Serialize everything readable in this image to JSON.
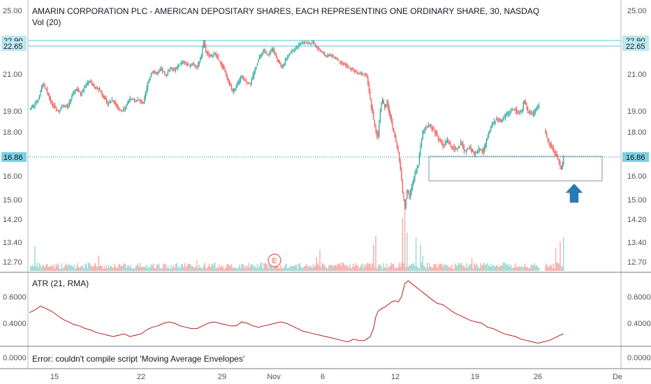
{
  "chart_data": {
    "type": "candlestick",
    "title": "AMARIN CORPORATION PLC - AMERICAN DEPOSITARY SHARES, EACH REPRESENTING ONE ORDINARY SHARE, 30, NASDAQ",
    "volume_label": "Vol (20)",
    "atr_label": "ATR (21, RMA)",
    "error_label": "Error: couldn't compile script 'Moving Average Envelopes'",
    "price_ticks": [
      "25.00",
      "21.00",
      "19.00",
      "18.00",
      "16.00",
      "15.00",
      "14.20",
      "13.40",
      "12.70"
    ],
    "atr_ticks": [
      "0.6000",
      "0.4000"
    ],
    "bottom_tick": "0.0000",
    "x_ticks": [
      "15",
      "22",
      "29",
      "Nov",
      "6",
      "12",
      "19",
      "26",
      "De"
    ],
    "levels": [
      {
        "value": "22.90",
        "color": "#7ccfe0"
      },
      {
        "value": "22.65",
        "color": "#7ccfe0"
      },
      {
        "value": "16.86",
        "color": "#26a69a",
        "dotted": true
      }
    ],
    "earnings_marker": "E",
    "colors": {
      "up": "#26a69a",
      "down": "#ef5350",
      "vol_up": "#9ad7cf",
      "vol_down": "#f7a9a7",
      "atr": "#b71c1c",
      "arrow": "#2979b9"
    },
    "price_path": [
      [
        0,
        19.1
      ],
      [
        4,
        19.3
      ],
      [
        8,
        19.6
      ],
      [
        12,
        20.5
      ],
      [
        16,
        20.0
      ],
      [
        20,
        19.4
      ],
      [
        26,
        19.0
      ],
      [
        30,
        19.3
      ],
      [
        34,
        19.2
      ],
      [
        38,
        19.8
      ],
      [
        42,
        20.2
      ],
      [
        46,
        19.9
      ],
      [
        50,
        20.4
      ],
      [
        54,
        20.6
      ],
      [
        58,
        20.3
      ],
      [
        62,
        20.2
      ],
      [
        66,
        19.8
      ],
      [
        70,
        19.4
      ],
      [
        74,
        19.6
      ],
      [
        78,
        19.3
      ],
      [
        82,
        19.0
      ],
      [
        86,
        19.2
      ],
      [
        90,
        19.7
      ],
      [
        94,
        19.5
      ],
      [
        98,
        19.6
      ],
      [
        102,
        19.4
      ],
      [
        106,
        20.5
      ],
      [
        110,
        21.2
      ],
      [
        114,
        21.0
      ],
      [
        118,
        21.3
      ],
      [
        122,
        20.9
      ],
      [
        126,
        21.4
      ],
      [
        130,
        21.2
      ],
      [
        134,
        21.6
      ],
      [
        138,
        21.8
      ],
      [
        142,
        21.5
      ],
      [
        146,
        21.7
      ],
      [
        150,
        21.4
      ],
      [
        154,
        22.2
      ],
      [
        156,
        23.1
      ],
      [
        158,
        22.4
      ],
      [
        162,
        22.1
      ],
      [
        166,
        22.3
      ],
      [
        170,
        21.8
      ],
      [
        174,
        21.3
      ],
      [
        178,
        20.6
      ],
      [
        182,
        20.1
      ],
      [
        186,
        20.4
      ],
      [
        190,
        20.9
      ],
      [
        194,
        20.6
      ],
      [
        198,
        20.5
      ],
      [
        202,
        21.3
      ],
      [
        206,
        22.1
      ],
      [
        210,
        22.5
      ],
      [
        214,
        22.2
      ],
      [
        218,
        22.6
      ],
      [
        222,
        21.9
      ],
      [
        226,
        21.4
      ],
      [
        230,
        22.0
      ],
      [
        234,
        22.4
      ],
      [
        238,
        22.6
      ],
      [
        242,
        22.9
      ],
      [
        246,
        23.0
      ],
      [
        250,
        22.9
      ],
      [
        254,
        23.0
      ],
      [
        258,
        22.6
      ],
      [
        262,
        22.4
      ],
      [
        266,
        22.1
      ],
      [
        270,
        22.2
      ],
      [
        274,
        22.0
      ],
      [
        278,
        21.8
      ],
      [
        282,
        21.6
      ],
      [
        286,
        21.4
      ],
      [
        290,
        21.2
      ],
      [
        294,
        21.0
      ],
      [
        298,
        21.0
      ],
      [
        302,
        20.9
      ],
      [
        306,
        19.2
      ],
      [
        310,
        18.0
      ],
      [
        312,
        17.8
      ],
      [
        314,
        19.1
      ],
      [
        316,
        19.6
      ],
      [
        318,
        19.2
      ],
      [
        320,
        19.5
      ],
      [
        322,
        18.9
      ],
      [
        326,
        18.0
      ],
      [
        330,
        17.1
      ],
      [
        332,
        16.3
      ],
      [
        334,
        15.3
      ],
      [
        336,
        14.7
      ],
      [
        338,
        15.4
      ],
      [
        340,
        15.1
      ],
      [
        342,
        15.5
      ],
      [
        344,
        15.9
      ],
      [
        346,
        16.3
      ],
      [
        348,
        16.5
      ],
      [
        350,
        17.4
      ],
      [
        352,
        18.0
      ],
      [
        354,
        18.2
      ],
      [
        358,
        18.3
      ],
      [
        362,
        18.1
      ],
      [
        366,
        17.7
      ],
      [
        370,
        17.4
      ],
      [
        374,
        17.6
      ],
      [
        378,
        17.3
      ],
      [
        382,
        17.2
      ],
      [
        386,
        17.5
      ],
      [
        390,
        17.1
      ],
      [
        394,
        17.3
      ],
      [
        398,
        17.0
      ],
      [
        402,
        17.2
      ],
      [
        406,
        17.1
      ],
      [
        410,
        17.8
      ],
      [
        414,
        18.4
      ],
      [
        418,
        18.6
      ],
      [
        422,
        18.5
      ],
      [
        426,
        18.8
      ],
      [
        430,
        19.0
      ],
      [
        434,
        19.1
      ],
      [
        438,
        18.9
      ],
      [
        441,
        19.0
      ],
      [
        442,
        19.5
      ],
      [
        444,
        19.4
      ],
      [
        446,
        19.0
      ],
      [
        450,
        18.8
      ],
      [
        454,
        19.2
      ],
      [
        456,
        19.3
      ],
      [
        462,
        17.9
      ],
      [
        464,
        17.6
      ],
      [
        466,
        17.4
      ],
      [
        468,
        17.2
      ],
      [
        470,
        17.0
      ],
      [
        472,
        16.9
      ],
      [
        474,
        16.6
      ],
      [
        476,
        16.3
      ],
      [
        478,
        16.86
      ]
    ],
    "atr_path": [
      [
        0,
        0.48
      ],
      [
        5,
        0.5
      ],
      [
        10,
        0.53
      ],
      [
        15,
        0.51
      ],
      [
        20,
        0.49
      ],
      [
        25,
        0.46
      ],
      [
        30,
        0.43
      ],
      [
        35,
        0.41
      ],
      [
        40,
        0.39
      ],
      [
        45,
        0.38
      ],
      [
        50,
        0.36
      ],
      [
        55,
        0.35
      ],
      [
        60,
        0.33
      ],
      [
        65,
        0.32
      ],
      [
        70,
        0.31
      ],
      [
        75,
        0.3
      ],
      [
        80,
        0.31
      ],
      [
        85,
        0.32
      ],
      [
        90,
        0.3
      ],
      [
        95,
        0.31
      ],
      [
        100,
        0.32
      ],
      [
        105,
        0.35
      ],
      [
        110,
        0.37
      ],
      [
        115,
        0.38
      ],
      [
        120,
        0.4
      ],
      [
        125,
        0.41
      ],
      [
        130,
        0.4
      ],
      [
        135,
        0.38
      ],
      [
        140,
        0.37
      ],
      [
        145,
        0.36
      ],
      [
        150,
        0.36
      ],
      [
        155,
        0.38
      ],
      [
        160,
        0.4
      ],
      [
        165,
        0.41
      ],
      [
        170,
        0.4
      ],
      [
        175,
        0.39
      ],
      [
        180,
        0.38
      ],
      [
        185,
        0.38
      ],
      [
        190,
        0.41
      ],
      [
        195,
        0.4
      ],
      [
        200,
        0.38
      ],
      [
        205,
        0.37
      ],
      [
        210,
        0.38
      ],
      [
        215,
        0.39
      ],
      [
        220,
        0.4
      ],
      [
        225,
        0.41
      ],
      [
        230,
        0.4
      ],
      [
        235,
        0.38
      ],
      [
        240,
        0.36
      ],
      [
        245,
        0.34
      ],
      [
        250,
        0.33
      ],
      [
        255,
        0.32
      ],
      [
        260,
        0.31
      ],
      [
        265,
        0.3
      ],
      [
        270,
        0.29
      ],
      [
        275,
        0.28
      ],
      [
        280,
        0.27
      ],
      [
        285,
        0.26
      ],
      [
        290,
        0.28
      ],
      [
        295,
        0.27
      ],
      [
        300,
        0.27
      ],
      [
        305,
        0.3
      ],
      [
        308,
        0.36
      ],
      [
        310,
        0.45
      ],
      [
        312,
        0.49
      ],
      [
        315,
        0.51
      ],
      [
        318,
        0.52
      ],
      [
        321,
        0.54
      ],
      [
        324,
        0.56
      ],
      [
        327,
        0.57
      ],
      [
        330,
        0.56
      ],
      [
        333,
        0.6
      ],
      [
        336,
        0.7
      ],
      [
        339,
        0.72
      ],
      [
        342,
        0.7
      ],
      [
        345,
        0.68
      ],
      [
        348,
        0.66
      ],
      [
        351,
        0.64
      ],
      [
        354,
        0.62
      ],
      [
        357,
        0.6
      ],
      [
        360,
        0.58
      ],
      [
        365,
        0.55
      ],
      [
        370,
        0.54
      ],
      [
        375,
        0.51
      ],
      [
        380,
        0.48
      ],
      [
        385,
        0.46
      ],
      [
        390,
        0.44
      ],
      [
        395,
        0.42
      ],
      [
        400,
        0.41
      ],
      [
        405,
        0.4
      ],
      [
        410,
        0.37
      ],
      [
        415,
        0.36
      ],
      [
        420,
        0.34
      ],
      [
        425,
        0.32
      ],
      [
        430,
        0.31
      ],
      [
        435,
        0.3
      ],
      [
        440,
        0.28
      ],
      [
        445,
        0.27
      ],
      [
        450,
        0.26
      ],
      [
        455,
        0.25
      ],
      [
        460,
        0.26
      ],
      [
        465,
        0.27
      ],
      [
        470,
        0.29
      ],
      [
        475,
        0.31
      ],
      [
        478,
        0.32
      ]
    ],
    "volume_spikes": [
      [
        5,
        0.35
      ],
      [
        62,
        0.22
      ],
      [
        150,
        0.15
      ],
      [
        257,
        0.2
      ],
      [
        260,
        0.3
      ],
      [
        308,
        0.38
      ],
      [
        310,
        0.5
      ],
      [
        334,
        0.76
      ],
      [
        336,
        0.92
      ],
      [
        338,
        0.55
      ],
      [
        346,
        0.48
      ],
      [
        350,
        0.38
      ],
      [
        352,
        0.22
      ],
      [
        396,
        0.18
      ],
      [
        471,
        0.32
      ],
      [
        475,
        0.42
      ],
      [
        478,
        0.48
      ]
    ]
  }
}
